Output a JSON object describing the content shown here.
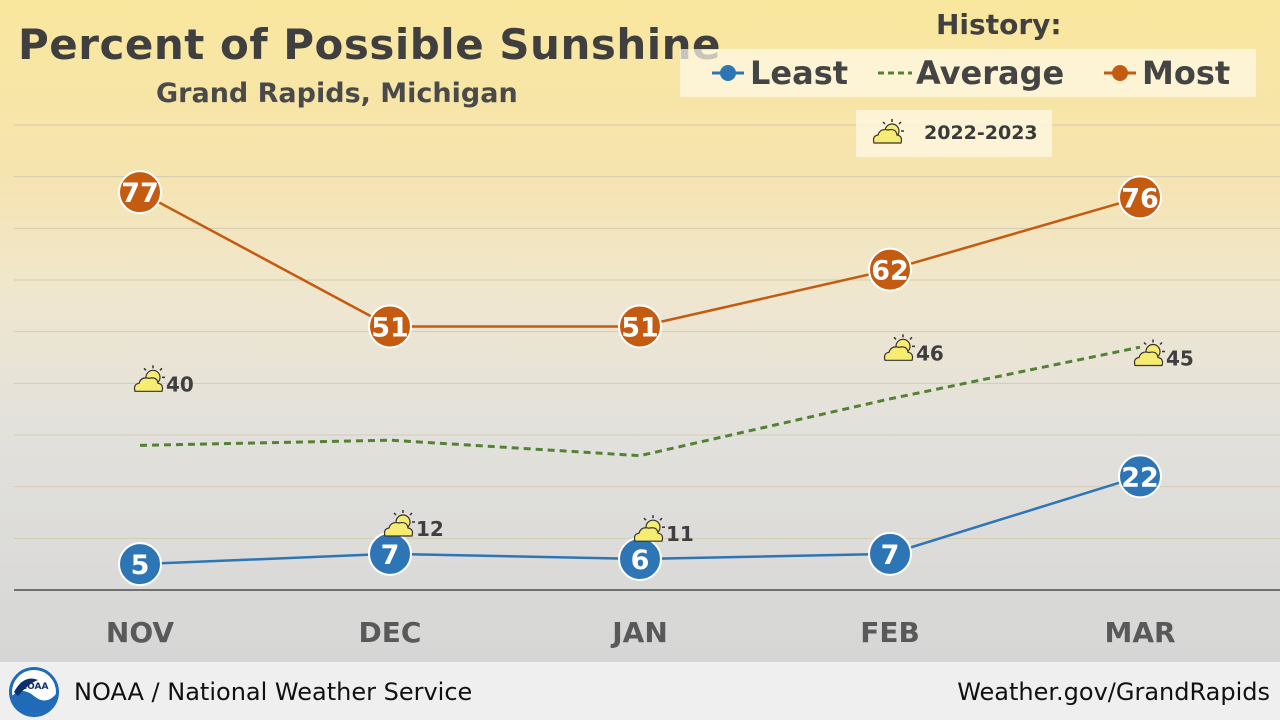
{
  "header": {
    "title": "Percent of Possible Sunshine",
    "subtitle": "Grand Rapids, Michigan"
  },
  "legend": {
    "heading": "History:",
    "least_label": "Least",
    "average_label": "Average",
    "most_label": "Most",
    "season_label": "2022-2023",
    "season_icon": "partly-sunny-icon"
  },
  "footer": {
    "left_text": "NOAA / National Weather Service",
    "right_text": "Weather.gov/GrandRapids",
    "logo_text": "NOAA",
    "logo_icon": "noaa-logo"
  },
  "colors": {
    "least": "#2e75b6",
    "average": "#548235",
    "most": "#c55a11",
    "axis_text": "#595959",
    "value_text": "#3f3f3f"
  },
  "chart_data": {
    "type": "line",
    "categories": [
      "NOV",
      "DEC",
      "JAN",
      "FEB",
      "MAR"
    ],
    "ylim": [
      0,
      90
    ],
    "grid": true,
    "legend_position": "top-right",
    "series": [
      {
        "name": "Least",
        "values": [
          5,
          7,
          6,
          7,
          22
        ],
        "style": "solid",
        "markers": true,
        "labels": [
          "5",
          "7",
          "6",
          "7",
          "22"
        ]
      },
      {
        "name": "Average",
        "values": [
          28,
          29,
          26,
          37,
          47
        ],
        "style": "dashed",
        "markers": false
      },
      {
        "name": "Most",
        "values": [
          77,
          51,
          51,
          62,
          76
        ],
        "style": "solid",
        "markers": true,
        "labels": [
          "77",
          "51",
          "51",
          "62",
          "76"
        ]
      },
      {
        "name": "2022-2023",
        "values": [
          40,
          12,
          11,
          46,
          45
        ],
        "style": "icon",
        "labels": [
          "40",
          "12",
          "11",
          "46",
          "45"
        ]
      }
    ]
  }
}
